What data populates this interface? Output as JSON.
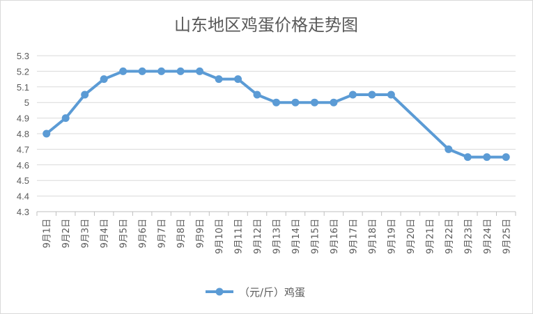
{
  "chart_data": {
    "type": "line",
    "title": "山东地区鸡蛋价格走势图",
    "categories": [
      "9月1日",
      "9月2日",
      "9月3日",
      "9月4日",
      "9月5日",
      "9月6日",
      "9月7日",
      "9月8日",
      "9月9日",
      "9月10日",
      "9月11日",
      "9月12日",
      "9月13日",
      "9月14日",
      "9月15日",
      "9月16日",
      "9月17日",
      "9月18日",
      "9月19日",
      "9月20日",
      "9月21日",
      "9月22日",
      "9月23日",
      "9月24日",
      "9月25日"
    ],
    "series": [
      {
        "name": "（元/斤）鸡蛋",
        "color": "#5b9bd5",
        "values": [
          4.8,
          4.9,
          5.05,
          5.15,
          5.2,
          5.2,
          5.2,
          5.2,
          5.2,
          5.15,
          5.15,
          5.05,
          5.0,
          5.0,
          5.0,
          5.0,
          5.05,
          5.05,
          5.05,
          null,
          null,
          4.7,
          4.65,
          4.65,
          4.65
        ]
      }
    ],
    "ylim": [
      4.3,
      5.3
    ],
    "yticks": [
      "4.3",
      "4.4",
      "4.5",
      "4.6",
      "4.7",
      "4.8",
      "4.9",
      "5",
      "5.1",
      "5.2",
      "5.3"
    ],
    "grid": true,
    "gaps": "connected",
    "legend": "bottom"
  }
}
